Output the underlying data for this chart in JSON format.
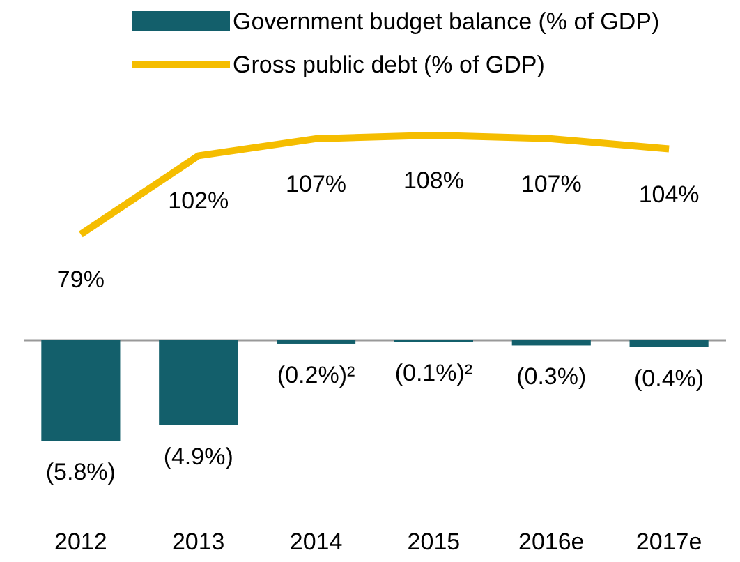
{
  "chart_data": [
    {
      "type": "line",
      "categories": [
        null,
        null,
        null,
        null,
        null,
        null
      ],
      "series": [
        {
          "name": "Gross public debt (% of GDP)",
          "color": "#f5bd00",
          "values": [
            79,
            102,
            107,
            108,
            107,
            104
          ],
          "value_labels": [
            "79%",
            "102%",
            "107%",
            "108%",
            "107%",
            "104%"
          ]
        }
      ],
      "legend": "top left"
    },
    {
      "type": "bar",
      "categories": [
        "2012",
        "2013",
        "2014",
        "2015",
        "2016e",
        "2017e"
      ],
      "series": [
        {
          "name": "Government budget balance (% of GDP)",
          "color": "#135f6b",
          "values": [
            -5.8,
            -4.9,
            -0.2,
            -0.1,
            -0.3,
            -0.4
          ],
          "value_labels": [
            "(5.8%)",
            "(4.9%)",
            "(0.2%)²",
            "(0.1%)²",
            "(0.3%)",
            "(0.4%)"
          ]
        }
      ],
      "legend": "top left",
      "tick_labels": "x"
    }
  ]
}
